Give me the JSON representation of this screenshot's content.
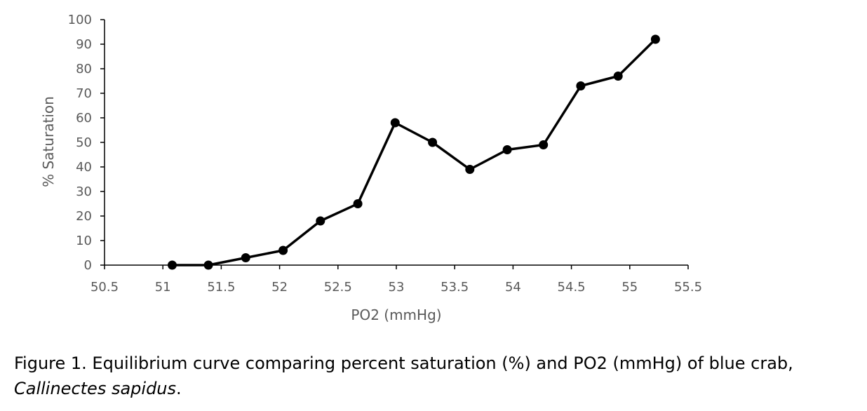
{
  "chart_data": {
    "type": "line",
    "title": "",
    "xlabel": "PO2 (mmHg)",
    "ylabel": "% Saturation",
    "xlim": [
      50.5,
      55.5
    ],
    "ylim": [
      0,
      100
    ],
    "x_ticks": [
      "50.5",
      "51",
      "51.5",
      "52",
      "52.5",
      "53",
      "53.5",
      "54",
      "54.5",
      "55",
      "55.5"
    ],
    "y_ticks": [
      "0",
      "10",
      "20",
      "30",
      "40",
      "50",
      "60",
      "70",
      "80",
      "90",
      "100"
    ],
    "series": [
      {
        "color": "#000000",
        "marker": "circle",
        "x": [
          51.08,
          51.39,
          51.71,
          52.03,
          52.35,
          52.67,
          52.99,
          53.31,
          53.63,
          53.95,
          54.26,
          54.58,
          54.9,
          55.22
        ],
        "y": [
          0,
          0,
          3,
          6,
          18,
          25,
          58,
          50,
          39,
          47,
          49,
          73,
          77,
          92
        ]
      }
    ],
    "grid": false,
    "legend": "none"
  },
  "caption": {
    "line1": "Figure 1. Equilibrium curve comparing percent saturation (%) and PO2 (mmHg) of blue crab,",
    "species": "Callinectes sapidus",
    "end": "."
  }
}
